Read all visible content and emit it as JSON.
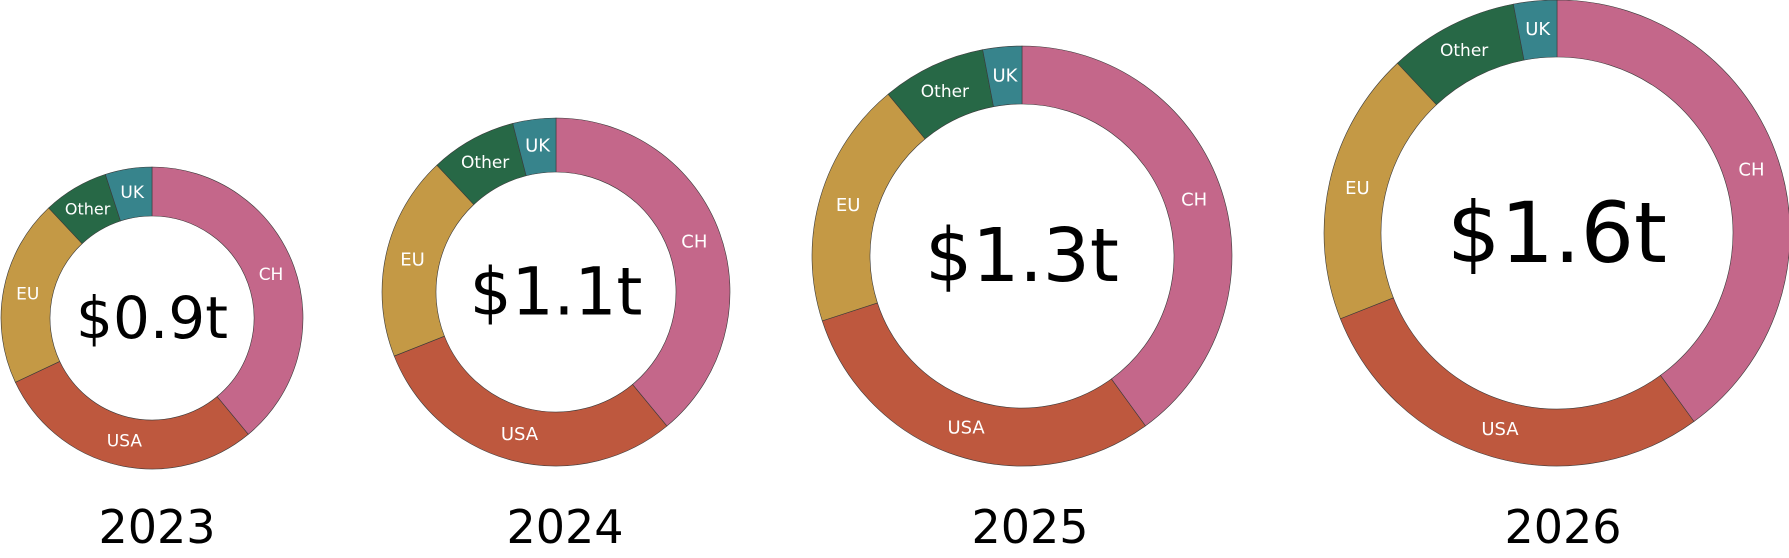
{
  "chart_data": {
    "type": "pie",
    "variant": "donut",
    "colors": {
      "CH": "#c4678a",
      "USA": "#be583e",
      "EU": "#c49945",
      "Other": "#276846",
      "UK": "#37848c"
    },
    "charts": [
      {
        "year": "2023",
        "total": "$0.9t",
        "slices": [
          {
            "label": "CH",
            "value": 39
          },
          {
            "label": "USA",
            "value": 29
          },
          {
            "label": "EU",
            "value": 20
          },
          {
            "label": "Other",
            "value": 7
          },
          {
            "label": "UK",
            "value": 5
          }
        ]
      },
      {
        "year": "2024",
        "total": "$1.1t",
        "slices": [
          {
            "label": "CH",
            "value": 39
          },
          {
            "label": "USA",
            "value": 30
          },
          {
            "label": "EU",
            "value": 19
          },
          {
            "label": "Other",
            "value": 8
          },
          {
            "label": "UK",
            "value": 4
          }
        ]
      },
      {
        "year": "2025",
        "total": "$1.3t",
        "slices": [
          {
            "label": "CH",
            "value": 40
          },
          {
            "label": "USA",
            "value": 30
          },
          {
            "label": "EU",
            "value": 19
          },
          {
            "label": "Other",
            "value": 8
          },
          {
            "label": "UK",
            "value": 3
          }
        ]
      },
      {
        "year": "2026",
        "total": "$1.6t",
        "slices": [
          {
            "label": "CH",
            "value": 40
          },
          {
            "label": "USA",
            "value": 29
          },
          {
            "label": "EU",
            "value": 19
          },
          {
            "label": "Other",
            "value": 9
          },
          {
            "label": "UK",
            "value": 3
          }
        ]
      }
    ]
  }
}
